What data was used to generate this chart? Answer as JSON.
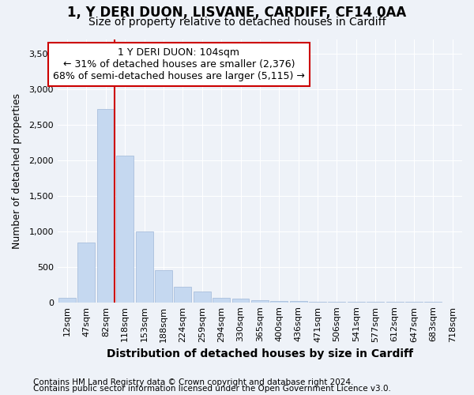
{
  "title": "1, Y DERI DUON, LISVANE, CARDIFF, CF14 0AA",
  "subtitle": "Size of property relative to detached houses in Cardiff",
  "xlabel": "Distribution of detached houses by size in Cardiff",
  "ylabel": "Number of detached properties",
  "footnote1": "Contains HM Land Registry data © Crown copyright and database right 2024.",
  "footnote2": "Contains public sector information licensed under the Open Government Licence v3.0.",
  "categories": [
    "12sqm",
    "47sqm",
    "82sqm",
    "118sqm",
    "153sqm",
    "188sqm",
    "224sqm",
    "259sqm",
    "294sqm",
    "330sqm",
    "365sqm",
    "400sqm",
    "436sqm",
    "471sqm",
    "506sqm",
    "541sqm",
    "577sqm",
    "612sqm",
    "647sqm",
    "683sqm",
    "718sqm"
  ],
  "values": [
    60,
    840,
    2720,
    2060,
    1000,
    450,
    215,
    150,
    65,
    50,
    35,
    20,
    15,
    10,
    8,
    5,
    5,
    4,
    3,
    3,
    2
  ],
  "bar_color": "#c5d8f0",
  "bar_edge_color": "#a0b8d8",
  "vline_color": "#cc0000",
  "vline_x_index": 2,
  "annotation_text": "1 Y DERI DUON: 104sqm\n← 31% of detached houses are smaller (2,376)\n68% of semi-detached houses are larger (5,115) →",
  "annotation_box_facecolor": "#ffffff",
  "annotation_box_edgecolor": "#cc0000",
  "ylim": [
    0,
    3700
  ],
  "yticks": [
    0,
    500,
    1000,
    1500,
    2000,
    2500,
    3000,
    3500
  ],
  "background_color": "#eef2f8",
  "grid_color": "#ffffff",
  "title_fontsize": 12,
  "subtitle_fontsize": 10,
  "xlabel_fontsize": 10,
  "ylabel_fontsize": 9,
  "tick_fontsize": 8,
  "annotation_fontsize": 9,
  "footnote_fontsize": 7.5
}
